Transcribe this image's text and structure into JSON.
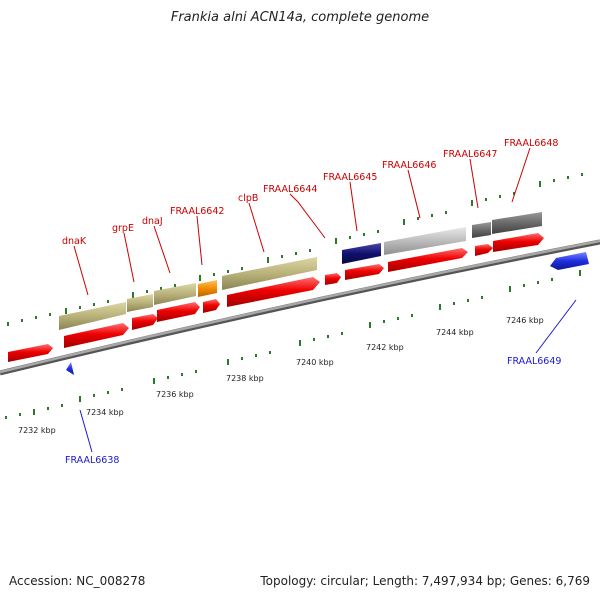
{
  "header": {
    "title": "Frankia alni ACN14a, complete genome"
  },
  "footer": {
    "accession": "Accession: NC_008278",
    "summary": "Topology: circular; Length: 7,497,934 bp; Genes: 6,769"
  },
  "axis": {
    "unit": "kbp",
    "ticks": [
      "7232 kbp",
      "7234 kbp",
      "7236 kbp",
      "7238 kbp",
      "7240 kbp",
      "7242 kbp",
      "7244 kbp",
      "7246 kbp"
    ]
  },
  "colors": {
    "cds": "#e00000",
    "khaki": "#b9b27a",
    "orange": "#f28c00",
    "navy": "#101070",
    "silver": "#bcbcbc",
    "gray": "#6a6a6a",
    "blue": "#1f2fe0",
    "label_red": "#cc0000",
    "label_blue": "#1a1ad0",
    "tick_green": "#2a7a2a",
    "backbone": "#8a8a8a"
  },
  "labels": {
    "top": [
      "dnaK",
      "grpE",
      "dnaJ",
      "FRAAL6642",
      "clpB",
      "FRAAL6644",
      "FRAAL6645",
      "FRAAL6646",
      "FRAAL6647",
      "FRAAL6648"
    ],
    "bottom": [
      "FRAAL6638",
      "FRAAL6649"
    ]
  }
}
